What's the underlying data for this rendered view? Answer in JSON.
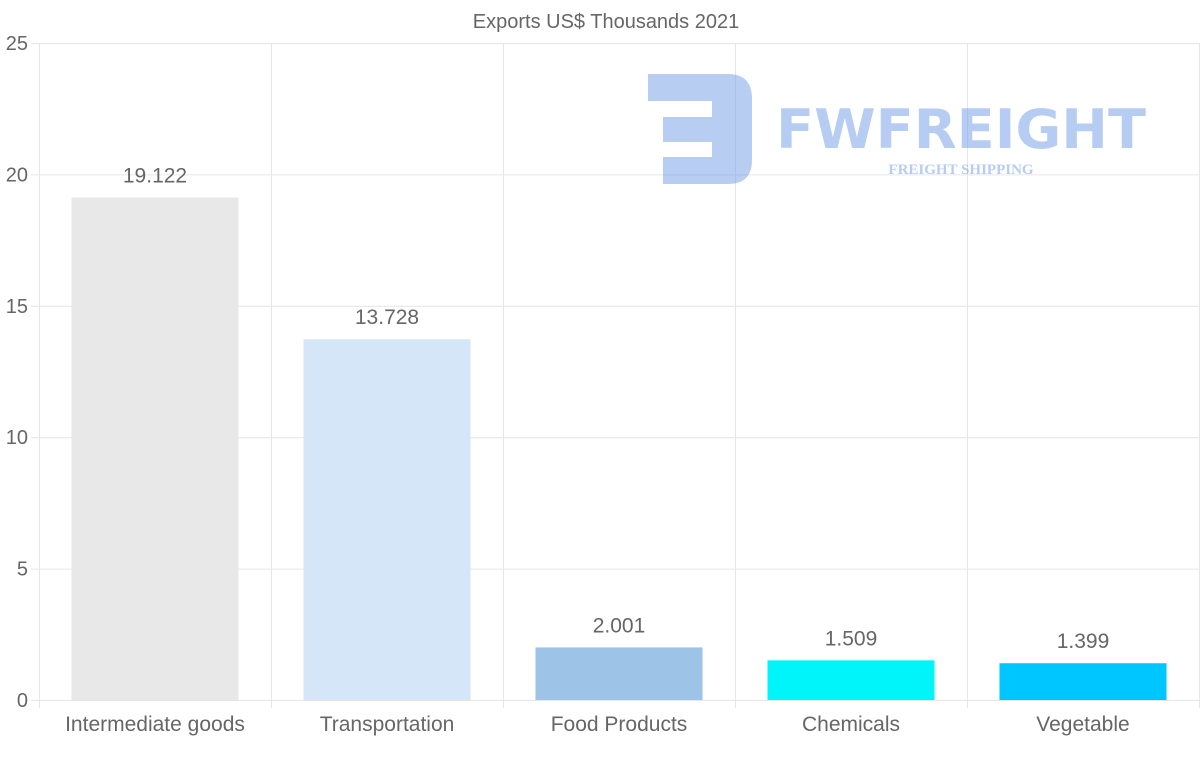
{
  "chart_data": {
    "type": "bar",
    "title": "Exports US$ Thousands 2021",
    "xlabel": "",
    "ylabel": "",
    "categories": [
      "Intermediate goods",
      "Transportation",
      "Food Products",
      "Chemicals",
      "Vegetable"
    ],
    "values": [
      19.122,
      13.728,
      2.001,
      1.509,
      1.399
    ],
    "value_labels": [
      "19.122",
      "13.728",
      "2.001",
      "1.509",
      "1.399"
    ],
    "colors": [
      "#e8e8e8",
      "#d6e6f9",
      "#9dc3e6",
      "#00f5fb",
      "#00c6ff"
    ],
    "ylim": [
      0,
      25
    ],
    "yticks": [
      0,
      5,
      10,
      15,
      20,
      25
    ],
    "grid": true,
    "legend": "none"
  },
  "watermark": {
    "brand": "FWFREIGHT",
    "tagline": "FREIGHT SHIPPING",
    "color": "#6f9be6"
  }
}
